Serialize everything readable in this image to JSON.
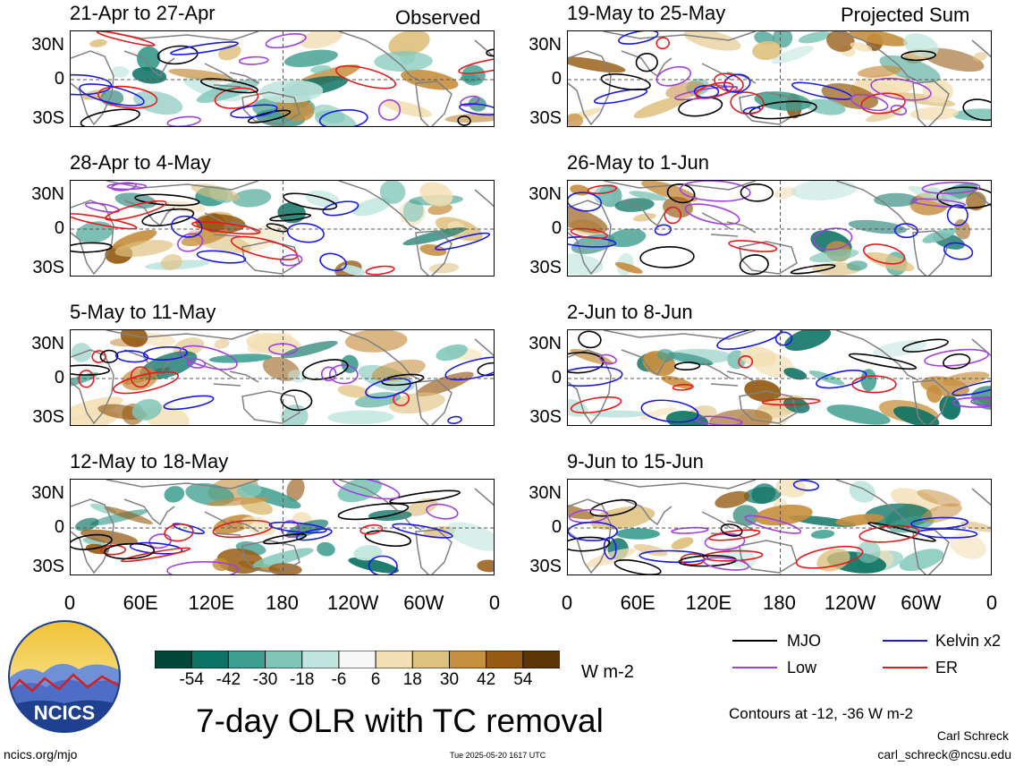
{
  "header": {
    "left": "Observed",
    "right": "Projected Sum"
  },
  "lat_labels": [
    "30N",
    "0",
    "30S"
  ],
  "lon_labels": [
    "0",
    "60E",
    "120E",
    "180",
    "120W",
    "60W",
    "0"
  ],
  "panels": [
    {
      "title": "21-Apr to 27-Apr"
    },
    {
      "title": "28-Apr to 4-May"
    },
    {
      "title": "5-May to 11-May"
    },
    {
      "title": "12-May to 18-May"
    },
    {
      "title": "19-May to 25-May"
    },
    {
      "title": "26-May to 1-Jun"
    },
    {
      "title": "2-Jun to 8-Jun"
    },
    {
      "title": "9-Jun to 15-Jun"
    }
  ],
  "colorbar": {
    "labels": [
      "-54",
      "-42",
      "-30",
      "-18",
      "-6",
      "6",
      "18",
      "30",
      "42",
      "54"
    ],
    "colors": [
      "#00473a",
      "#0d7364",
      "#3e9e8f",
      "#7fc6b9",
      "#c1e6df",
      "#f7f7f7",
      "#f3dfb4",
      "#dfc17f",
      "#c68f3f",
      "#965a12",
      "#5c3606"
    ],
    "units": "W m-2"
  },
  "legend": {
    "items": [
      {
        "label": "MJO",
        "color": "#000000"
      },
      {
        "label": "Kelvin x2",
        "color": "#1a1ae6"
      },
      {
        "label": "Low",
        "color": "#a040e0"
      },
      {
        "label": "ER",
        "color": "#e61a1a"
      }
    ],
    "contours": "Contours at -12, -36 W m-2"
  },
  "footer": {
    "title": "7-day OLR with TC removal",
    "site": "ncics.org/mjo",
    "timestamp": "Tue 2025-05-20 1617 UTC",
    "author": "Carl Schreck",
    "email": "carl_schreck@ncsu.edu",
    "logo_text": "NCICS"
  }
}
